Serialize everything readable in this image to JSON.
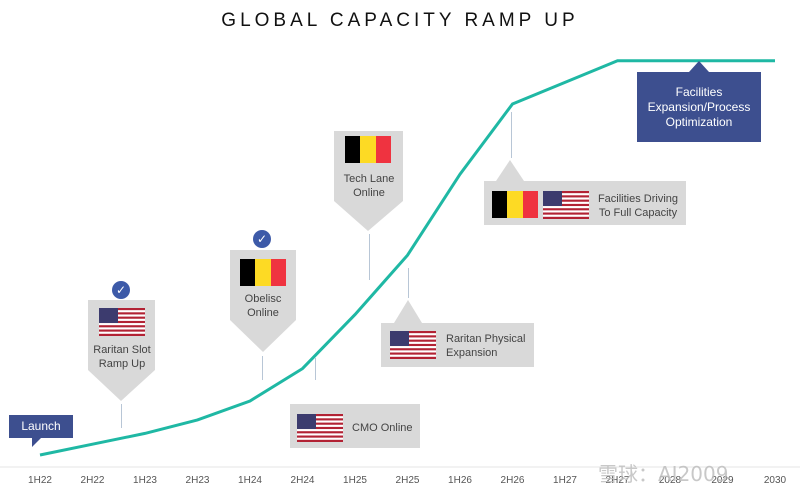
{
  "chart_data": {
    "type": "line",
    "title": "GLOBAL CAPACITY RAMP UP",
    "categories": [
      "1H22",
      "2H22",
      "1H23",
      "2H23",
      "1H24",
      "2H24",
      "1H25",
      "2H25",
      "1H26",
      "2H26",
      "1H27",
      "2H27",
      "2028",
      "2029",
      "2030"
    ],
    "series": [
      {
        "values": [
          0,
          4,
          8,
          13,
          20,
          32,
          52,
          74,
          104,
          130,
          138,
          146,
          146,
          146,
          146
        ]
      }
    ],
    "ylim": [
      0,
      150
    ],
    "grid": false,
    "line_color": "#1fb8a4"
  },
  "annotations": {
    "launch": "Launch",
    "raritan_slot": "Raritan Slot Ramp Up",
    "obelisc": "Obelisc Online",
    "cmo": "CMO Online",
    "tech_lane": "Tech Lane Online",
    "raritan_physical": "Raritan Physical Expansion",
    "facilities_driving": "Facilities Driving To Full Capacity",
    "facilities_expansion": "Facilities Expansion/Process Optimization"
  },
  "icons": {
    "check": "check-circle-icon",
    "us_flag": "us-flag-icon",
    "belgium_flag": "belgium-flag-icon"
  },
  "watermark": "雪球：AI2009",
  "colors": {
    "navy": "#3d4f8f",
    "callout_grey": "#d9d9d9",
    "check_blue": "#3d5aa8"
  }
}
